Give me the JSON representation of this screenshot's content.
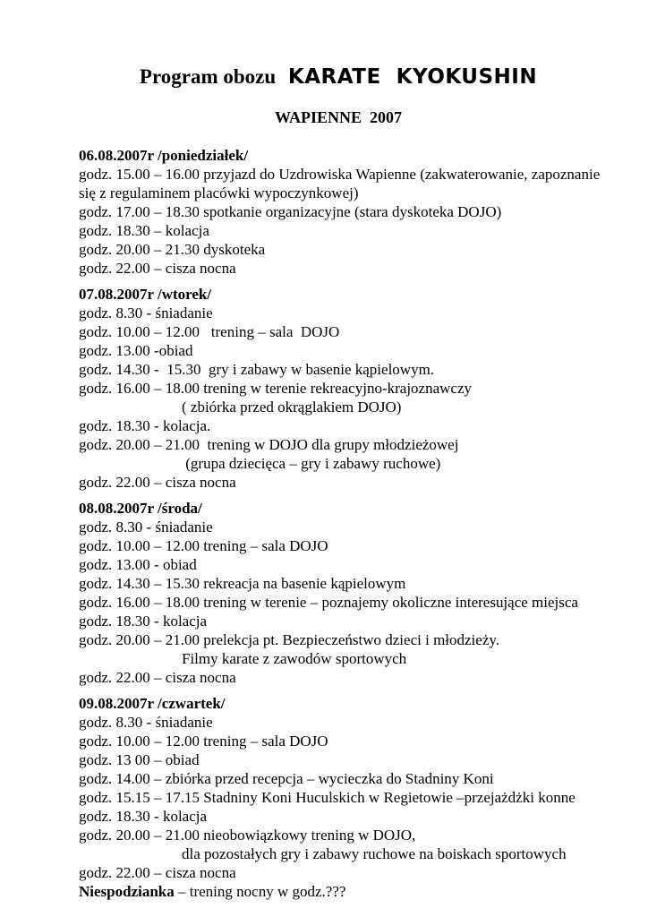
{
  "header": {
    "title_prefix": "Program obozu ",
    "title_main": "KARATE  KYOKUSHIN",
    "subtitle": "WAPIENNE  2007"
  },
  "sections": [
    {
      "date_header": "06.08.2007r /poniedziałek/",
      "lines": [
        {
          "text": "godz. 15.00 – 16.00 przyjazd do Uzdrowiska Wapienne (zakwaterowanie, zapoznanie"
        },
        {
          "text": "się z regulaminem placówki wypoczynkowej)"
        },
        {
          "text": "godz. 17.00 – 18.30 spotkanie organizacyjne (stara dyskoteka DOJO)"
        },
        {
          "text": "godz. 18.30 – kolacja"
        },
        {
          "text": "godz. 20.00 – 21.30 dyskoteka"
        },
        {
          "text": "godz. 22.00 – cisza nocna"
        }
      ]
    },
    {
      "date_header": "07.08.2007r /wtorek/",
      "lines": [
        {
          "text": "godz. 8.30 - śniadanie"
        },
        {
          "text": "godz. 10.00 – 12.00   trening – sala  DOJO"
        },
        {
          "text": "godz. 13.00 -obiad"
        },
        {
          "text": "godz. 14.30 -  15.30  gry i zabawy w basenie kąpielowym."
        },
        {
          "text": "godz. 16.00 – 18.00 trening w terenie rekreacyjno-krajoznawczy"
        },
        {
          "text": "( zbiórka przed okrąglakiem DOJO)",
          "indent": true
        },
        {
          "text": "godz. 18.30 - kolacja."
        },
        {
          "text": "godz. 20.00 – 21.00  trening w DOJO dla grupy młodzieżowej"
        },
        {
          "text": " (grupa dziecięca – gry i zabawy ruchowe)",
          "indent": true
        },
        {
          "text": "godz. 22.00 – cisza nocna"
        }
      ]
    },
    {
      "date_header": "08.08.2007r /środa/",
      "lines": [
        {
          "text": "godz. 8.30 - śniadanie"
        },
        {
          "text": "godz. 10.00 – 12.00 trening – sala DOJO"
        },
        {
          "text": "godz. 13.00 - obiad"
        },
        {
          "text": "godz. 14.30 – 15.30 rekreacja na basenie kąpielowym"
        },
        {
          "text": "godz. 16.00 – 18.00 trening w terenie – poznajemy okoliczne interesujące miejsca"
        },
        {
          "text": "godz. 18.30 - kolacja"
        },
        {
          "text": "godz. 20.00 – 21.00 prelekcja pt. Bezpieczeństwo dzieci i młodzieży."
        },
        {
          "text": "Filmy karate z zawodów sportowych",
          "indent": true
        },
        {
          "text": "godz. 22.00 – cisza nocna"
        }
      ]
    },
    {
      "date_header": "09.08.2007r /czwartek/",
      "lines": [
        {
          "text": "godz. 8.30 - śniadanie"
        },
        {
          "text": "godz. 10.00 – 12.00 trening – sala DOJO"
        },
        {
          "text": "godz. 13 00 – obiad"
        },
        {
          "text": "godz. 14.00 – zbiórka przed recepcja – wycieczka do Stadniny Koni"
        },
        {
          "text": "godz. 15.15 – 17.15 Stadniny Koni Huculskich w Regietowie –przejażdżki konne"
        },
        {
          "text": "godz. 18.30 - kolacja"
        },
        {
          "text": "godz. 20.00 – 21.00 nieobowiązkowy trening w DOJO,"
        },
        {
          "text": "dla pozostałych gry i zabawy ruchowe na boiskach sportowych",
          "indent": true
        },
        {
          "text": "godz. 22.00 – cisza nocna"
        },
        {
          "bold": "Niespodzianka",
          "text": " – trening nocny w godz.???"
        }
      ]
    }
  ]
}
